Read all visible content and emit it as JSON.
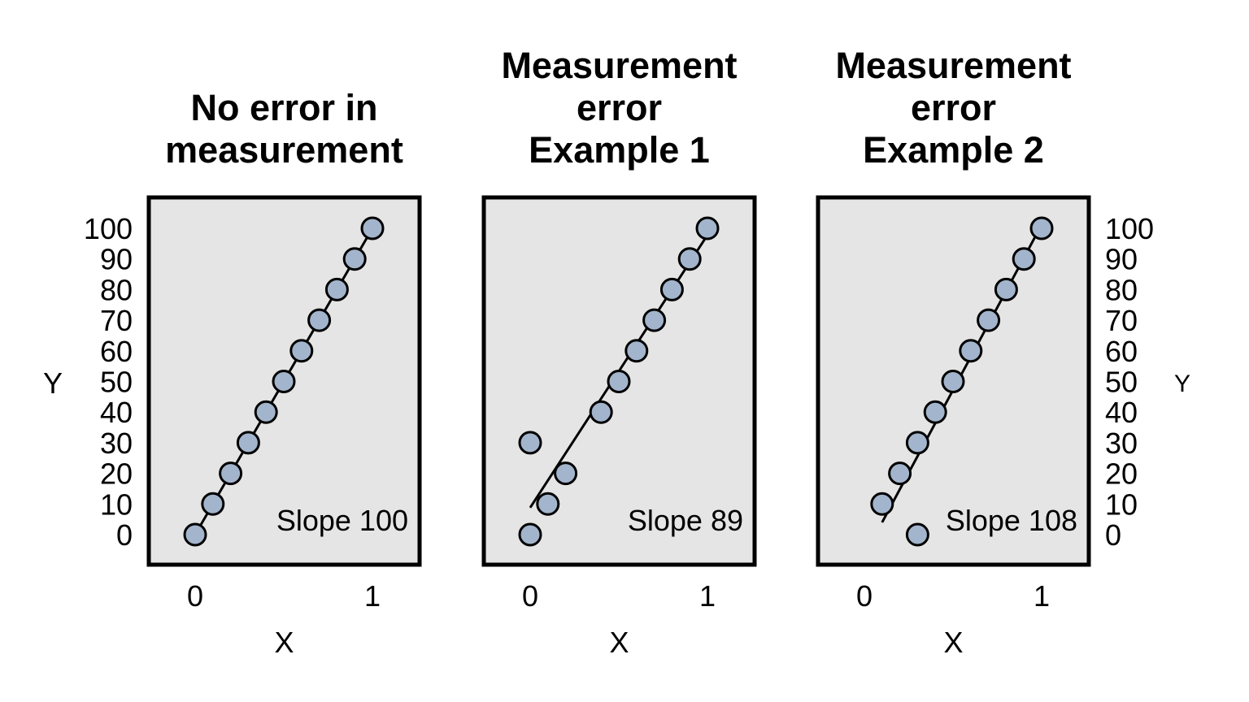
{
  "chart_data": [
    {
      "type": "scatter",
      "title": [
        "No error in",
        "measurement"
      ],
      "xlabel": "X",
      "ylabel": "Y",
      "xlim": [
        0,
        1
      ],
      "ylim": [
        0,
        100
      ],
      "xticks": [
        "0",
        "1"
      ],
      "yticks": [
        "0",
        "10",
        "20",
        "30",
        "40",
        "50",
        "60",
        "70",
        "80",
        "90",
        "100"
      ],
      "x": [
        0,
        0.1,
        0.2,
        0.3,
        0.4,
        0.5,
        0.6,
        0.7,
        0.8,
        0.9,
        1.0
      ],
      "y": [
        0,
        10,
        20,
        30,
        40,
        50,
        60,
        70,
        80,
        90,
        100
      ],
      "fit_line": {
        "x": [
          0,
          1
        ],
        "y": [
          0,
          100
        ]
      },
      "annotation": "Slope 100",
      "y_axis_side": "left",
      "grid": false
    },
    {
      "type": "scatter",
      "title": [
        "Measurement",
        "error",
        "Example 1"
      ],
      "xlabel": "X",
      "ylabel": "",
      "xlim": [
        0,
        1
      ],
      "ylim": [
        0,
        100
      ],
      "xticks": [
        "0",
        "1"
      ],
      "yticks": [],
      "x": [
        0,
        0,
        0.1,
        0.2,
        0.4,
        0.5,
        0.6,
        0.7,
        0.8,
        0.9,
        1.0
      ],
      "y": [
        0,
        30,
        10,
        20,
        40,
        50,
        60,
        70,
        80,
        90,
        100
      ],
      "fit_line": {
        "x": [
          0,
          1
        ],
        "y": [
          8.8,
          97.8
        ]
      },
      "annotation": "Slope 89",
      "y_axis_side": "none",
      "grid": false
    },
    {
      "type": "scatter",
      "title": [
        "Measurement",
        "error",
        "Example 2"
      ],
      "xlabel": "X",
      "ylabel": "Y",
      "xlim": [
        0,
        1
      ],
      "ylim": [
        0,
        100
      ],
      "xticks": [
        "0",
        "1"
      ],
      "yticks": [
        "0",
        "10",
        "20",
        "30",
        "40",
        "50",
        "60",
        "70",
        "80",
        "90",
        "100"
      ],
      "x": [
        0.1,
        0.2,
        0.3,
        0.3,
        0.4,
        0.5,
        0.6,
        0.7,
        0.8,
        0.9,
        1.0
      ],
      "y": [
        10,
        20,
        30,
        0,
        40,
        50,
        60,
        70,
        80,
        90,
        100
      ],
      "fit_line": {
        "x": [
          0.1,
          1
        ],
        "y": [
          4,
          101.2
        ]
      },
      "annotation": "Slope 108",
      "y_axis_side": "right",
      "grid": false
    }
  ]
}
